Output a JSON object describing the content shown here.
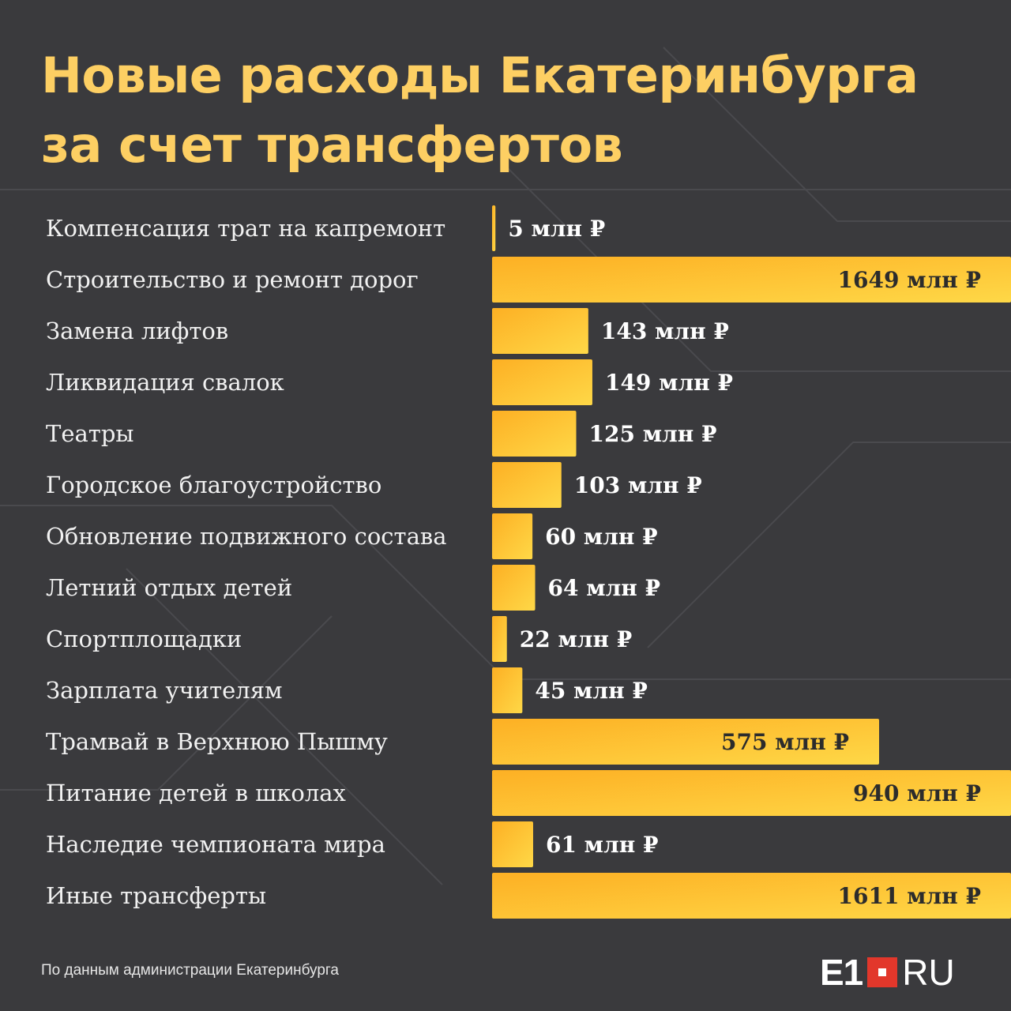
{
  "title_lines": [
    "Новые расходы Екатеринбурга",
    "за счет трансфертов"
  ],
  "source": "По данным администрации Екатеринбурга",
  "logo": {
    "e1": "E1",
    "ru": "RU",
    "square_color": "#e2372b"
  },
  "colors": {
    "background": "#3a3a3d",
    "title": "#fdcf63",
    "bar_start": "#fdb024",
    "bar_end": "#fed847",
    "inside_label": "#2c2c2c",
    "outside_label": "#ffffff"
  },
  "chart_data": {
    "type": "bar",
    "orientation": "horizontal",
    "title": "Новые расходы Екатеринбурга за счет трансфертов",
    "unit": "млн ₽",
    "categories": [
      "Компенсация трат на капремонт",
      "Строительство и ремонт дорог",
      "Замена лифтов",
      "Ликвидация свалок",
      "Театры",
      "Городское благоустройство",
      "Обновление подвижного состава",
      "Летний отдых детей",
      "Спортплощадки",
      "Зарплата учителям",
      "Трамвай в Верхнюю Пышму",
      "Питание детей в школах",
      "Наследие чемпионата мира",
      "Иные трансферты"
    ],
    "values": [
      5,
      1649,
      143,
      149,
      125,
      103,
      60,
      64,
      22,
      45,
      575,
      940,
      61,
      1611
    ],
    "value_labels": [
      "5 млн ₽",
      "1649 млн ₽",
      "143 млн ₽",
      "149 млн ₽",
      "125 млн ₽",
      "103 млн ₽",
      "60 млн ₽",
      "64 млн ₽",
      "22 млн ₽",
      "45 млн ₽",
      "575 млн ₽",
      "940 млн ₽",
      "61 млн ₽",
      "1611 млн ₽"
    ],
    "max_shown": 770
  }
}
